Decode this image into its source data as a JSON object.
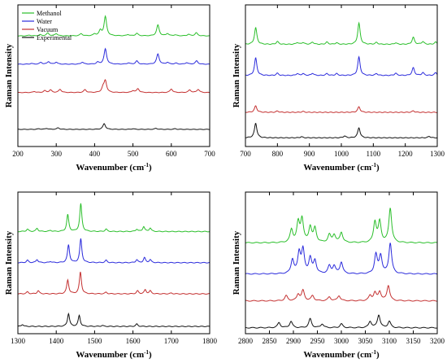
{
  "chart_data": [
    {
      "type": "line",
      "xlabel": "Wavenumber (cm⁻¹)",
      "ylabel": "Raman Intensity",
      "xlim": [
        200,
        700
      ],
      "xticks": [
        200,
        300,
        400,
        500,
        600,
        700
      ],
      "legend": "top-left",
      "series": [
        {
          "name": "Methanol",
          "color": "#2bbf2b",
          "peaks": [
            [
              230,
              0.06
            ],
            [
              258,
              0.09
            ],
            [
              278,
              0.22
            ],
            [
              300,
              0.18
            ],
            [
              365,
              0.17
            ],
            [
              400,
              0.14
            ],
            [
              415,
              0.4
            ],
            [
              428,
              1.5
            ],
            [
              487,
              0.1
            ],
            [
              510,
              0.2
            ],
            [
              565,
              0.85
            ],
            [
              590,
              0.18
            ],
            [
              610,
              0.08
            ],
            [
              645,
              0.12
            ],
            [
              665,
              0.24
            ]
          ]
        },
        {
          "name": "Water",
          "color": "#2b2bdc",
          "peaks": [
            [
              235,
              0.06
            ],
            [
              260,
              0.14
            ],
            [
              280,
              0.2
            ],
            [
              300,
              0.16
            ],
            [
              368,
              0.16
            ],
            [
              408,
              0.15
            ],
            [
              428,
              1.2
            ],
            [
              488,
              0.1
            ],
            [
              510,
              0.25
            ],
            [
              565,
              0.8
            ],
            [
              590,
              0.14
            ],
            [
              612,
              0.08
            ],
            [
              640,
              0.12
            ],
            [
              666,
              0.26
            ]
          ]
        },
        {
          "name": "Vacuum",
          "color": "#c43030",
          "peaks": [
            [
              243,
              0.08
            ],
            [
              270,
              0.14
            ],
            [
              285,
              0.2
            ],
            [
              310,
              0.25
            ],
            [
              375,
              0.22
            ],
            [
              422,
              0.35
            ],
            [
              428,
              0.9
            ],
            [
              500,
              0.14
            ],
            [
              513,
              0.3
            ],
            [
              600,
              0.28
            ],
            [
              648,
              0.2
            ],
            [
              670,
              0.25
            ]
          ]
        },
        {
          "name": "Experimental",
          "color": "#111111",
          "peaks": [
            [
              255,
              0.05
            ],
            [
              275,
              0.08
            ],
            [
              305,
              0.12
            ],
            [
              425,
              0.45
            ],
            [
              500,
              0.05
            ],
            [
              560,
              0.08
            ],
            [
              610,
              0.05
            ]
          ]
        }
      ]
    },
    {
      "type": "line",
      "xlabel": "Wavenumber (cm⁻¹)",
      "ylabel": "Raman Intensity",
      "xlim": [
        700,
        1300
      ],
      "xticks": [
        700,
        800,
        900,
        1000,
        1100,
        1200,
        1300
      ],
      "series": [
        {
          "color": "#2bbf2b",
          "peaks": [
            [
              732,
              0.9
            ],
            [
              800,
              0.15
            ],
            [
              862,
              0.1
            ],
            [
              880,
              0.1
            ],
            [
              910,
              0.12
            ],
            [
              955,
              0.12
            ],
            [
              985,
              0.08
            ],
            [
              1055,
              1.15
            ],
            [
              1110,
              0.1
            ],
            [
              1170,
              0.08
            ],
            [
              1225,
              0.38
            ],
            [
              1255,
              0.15
            ],
            [
              1295,
              0.12
            ]
          ]
        },
        {
          "color": "#2b2bdc",
          "peaks": [
            [
              732,
              0.95
            ],
            [
              800,
              0.12
            ],
            [
              862,
              0.1
            ],
            [
              880,
              0.1
            ],
            [
              910,
              0.12
            ],
            [
              955,
              0.1
            ],
            [
              985,
              0.1
            ],
            [
              1055,
              1.0
            ],
            [
              1110,
              0.1
            ],
            [
              1170,
              0.12
            ],
            [
              1225,
              0.42
            ],
            [
              1255,
              0.15
            ],
            [
              1295,
              0.15
            ]
          ]
        },
        {
          "color": "#c43030",
          "peaks": [
            [
              732,
              0.35
            ],
            [
              800,
              0.07
            ],
            [
              880,
              0.05
            ],
            [
              1055,
              0.3
            ],
            [
              1225,
              0.08
            ]
          ]
        },
        {
          "color": "#111111",
          "peaks": [
            [
              732,
              0.8
            ],
            [
              875,
              0.06
            ],
            [
              1010,
              0.1
            ],
            [
              1055,
              0.55
            ],
            [
              1275,
              0.08
            ]
          ]
        }
      ]
    },
    {
      "type": "line",
      "xlabel": "Wavenumber (cm⁻¹)",
      "ylabel": "Raman Intensity",
      "xlim": [
        1300,
        1800
      ],
      "xticks": [
        1300,
        1400,
        1500,
        1600,
        1700,
        1800
      ],
      "series": [
        {
          "color": "#2bbf2b",
          "peaks": [
            [
              1325,
              0.12
            ],
            [
              1350,
              0.16
            ],
            [
              1385,
              0.06
            ],
            [
              1430,
              0.85
            ],
            [
              1464,
              1.4
            ],
            [
              1530,
              0.12
            ],
            [
              1610,
              0.12
            ],
            [
              1628,
              0.25
            ],
            [
              1645,
              0.18
            ]
          ]
        },
        {
          "color": "#2b2bdc",
          "peaks": [
            [
              1325,
              0.12
            ],
            [
              1350,
              0.16
            ],
            [
              1385,
              0.06
            ],
            [
              1432,
              0.9
            ],
            [
              1464,
              1.2
            ],
            [
              1530,
              0.12
            ],
            [
              1610,
              0.15
            ],
            [
              1630,
              0.25
            ],
            [
              1645,
              0.15
            ]
          ]
        },
        {
          "color": "#c43030",
          "peaks": [
            [
              1325,
              0.1
            ],
            [
              1353,
              0.16
            ],
            [
              1430,
              0.7
            ],
            [
              1463,
              1.1
            ],
            [
              1530,
              0.08
            ],
            [
              1612,
              0.15
            ],
            [
              1632,
              0.2
            ],
            [
              1645,
              0.15
            ],
            [
              1700,
              0.04
            ]
          ]
        },
        {
          "color": "#111111",
          "peaks": [
            [
              1312,
              0.1
            ],
            [
              1432,
              0.65
            ],
            [
              1460,
              0.55
            ],
            [
              1520,
              0.05
            ],
            [
              1610,
              0.12
            ]
          ]
        }
      ]
    },
    {
      "type": "line",
      "xlabel": "Wavenumber (cm⁻¹)",
      "ylabel": "Raman Intensity",
      "xlim": [
        2800,
        3200
      ],
      "xticks": [
        2800,
        2850,
        2900,
        2950,
        3000,
        3050,
        3100,
        3150,
        3200
      ],
      "series": [
        {
          "color": "#2bbf2b",
          "peaks": [
            [
              2896,
              0.5
            ],
            [
              2910,
              0.75
            ],
            [
              2918,
              0.9
            ],
            [
              2935,
              0.6
            ],
            [
              2945,
              0.55
            ],
            [
              2975,
              0.3
            ],
            [
              2985,
              0.3
            ],
            [
              3000,
              0.4
            ],
            [
              3070,
              0.8
            ],
            [
              3080,
              0.8
            ],
            [
              3102,
              1.35
            ]
          ]
        },
        {
          "color": "#2b2bdc",
          "peaks": [
            [
              2898,
              0.55
            ],
            [
              2912,
              0.8
            ],
            [
              2920,
              0.9
            ],
            [
              2935,
              0.6
            ],
            [
              2945,
              0.5
            ],
            [
              2975,
              0.3
            ],
            [
              2985,
              0.3
            ],
            [
              3000,
              0.45
            ],
            [
              3072,
              0.75
            ],
            [
              3082,
              0.7
            ],
            [
              3102,
              1.2
            ]
          ]
        },
        {
          "color": "#c43030",
          "peaks": [
            [
              2885,
              0.2
            ],
            [
              2910,
              0.25
            ],
            [
              2920,
              0.4
            ],
            [
              2940,
              0.2
            ],
            [
              2975,
              0.15
            ],
            [
              2995,
              0.2
            ],
            [
              3060,
              0.2
            ],
            [
              3070,
              0.3
            ],
            [
              3080,
              0.35
            ],
            [
              3098,
              0.6
            ]
          ]
        },
        {
          "color": "#111111",
          "peaks": [
            [
              2870,
              0.2
            ],
            [
              2895,
              0.25
            ],
            [
              2935,
              0.35
            ],
            [
              2960,
              0.15
            ],
            [
              3000,
              0.15
            ],
            [
              3060,
              0.25
            ],
            [
              3078,
              0.5
            ],
            [
              3100,
              0.25
            ]
          ]
        }
      ]
    }
  ]
}
